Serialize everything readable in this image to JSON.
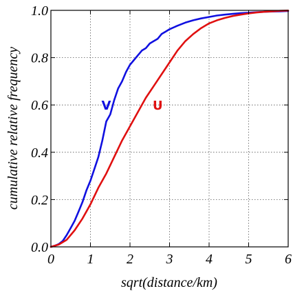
{
  "chart_data": {
    "type": "line",
    "xlabel": "sqrt(distance/km)",
    "ylabel": "cumulative relative frequency",
    "xlim": [
      0,
      6
    ],
    "ylim": [
      0,
      1
    ],
    "x_ticks": [
      "0",
      "1",
      "2",
      "3",
      "4",
      "5",
      "6"
    ],
    "y_ticks": [
      "0.0",
      "0.2",
      "0.4",
      "0.6",
      "0.8",
      "1.0"
    ],
    "grid": true,
    "series": [
      {
        "name": "V",
        "color": "#1010e0",
        "label_at": [
          1.4,
          0.6
        ],
        "x": [
          0,
          0.1,
          0.2,
          0.3,
          0.4,
          0.5,
          0.6,
          0.7,
          0.8,
          0.9,
          1.0,
          1.1,
          1.2,
          1.3,
          1.4,
          1.5,
          1.6,
          1.7,
          1.8,
          1.9,
          2.0,
          2.1,
          2.2,
          2.3,
          2.4,
          2.5,
          2.6,
          2.7,
          2.8,
          2.9,
          3.0,
          3.2,
          3.4,
          3.6,
          3.8,
          4.0,
          4.2,
          4.4,
          4.6,
          4.8,
          5.0,
          5.2,
          5.4,
          5.6,
          5.8,
          6.0
        ],
        "y": [
          0.0,
          0.005,
          0.012,
          0.025,
          0.05,
          0.08,
          0.11,
          0.15,
          0.19,
          0.24,
          0.28,
          0.33,
          0.38,
          0.45,
          0.53,
          0.56,
          0.62,
          0.67,
          0.7,
          0.74,
          0.77,
          0.79,
          0.81,
          0.83,
          0.84,
          0.86,
          0.87,
          0.88,
          0.9,
          0.91,
          0.92,
          0.935,
          0.948,
          0.958,
          0.966,
          0.972,
          0.978,
          0.982,
          0.985,
          0.988,
          0.99,
          0.992,
          0.994,
          0.995,
          0.996,
          0.997
        ]
      },
      {
        "name": "U",
        "color": "#e01010",
        "label_at": [
          2.7,
          0.6
        ],
        "x": [
          0,
          0.2,
          0.4,
          0.6,
          0.8,
          1.0,
          1.2,
          1.4,
          1.6,
          1.8,
          2.0,
          2.2,
          2.4,
          2.6,
          2.8,
          3.0,
          3.2,
          3.4,
          3.6,
          3.8,
          4.0,
          4.2,
          4.4,
          4.6,
          4.8,
          5.0,
          5.2,
          5.4,
          5.6,
          5.8,
          6.0
        ],
        "y": [
          0.0,
          0.01,
          0.03,
          0.07,
          0.12,
          0.18,
          0.25,
          0.31,
          0.38,
          0.45,
          0.51,
          0.57,
          0.63,
          0.68,
          0.73,
          0.78,
          0.83,
          0.87,
          0.9,
          0.925,
          0.945,
          0.958,
          0.968,
          0.976,
          0.982,
          0.987,
          0.991,
          0.994,
          0.996,
          0.998,
          0.999
        ]
      }
    ]
  }
}
